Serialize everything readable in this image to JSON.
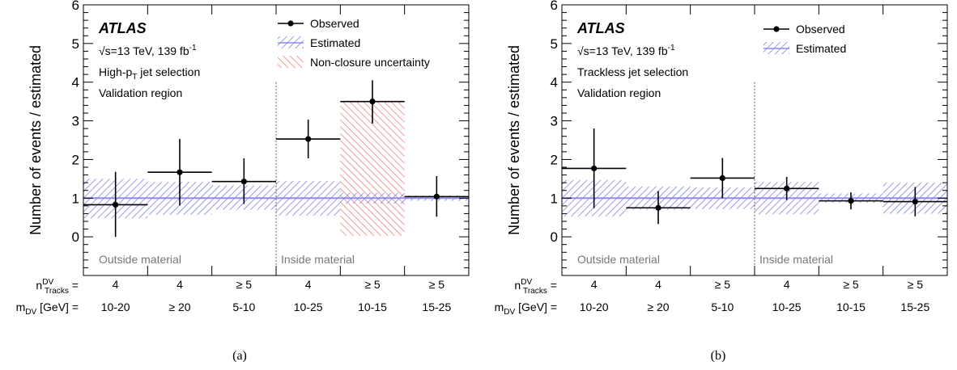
{
  "chart_data": [
    {
      "type": "bar",
      "caption": "(a)",
      "ylabel": "Number of events / estimated",
      "ylim": [
        -1,
        6
      ],
      "yticks": [
        "0",
        "1",
        "2",
        "3",
        "4",
        "5",
        "6"
      ],
      "atlas": "ATLAS",
      "info_lines": [
        "√s=13 TeV, 139 fb⁻¹",
        "High-p_T jet selection",
        "Validation region"
      ],
      "row_labels": {
        "ntracks": "n^DV_Tracks =",
        "mdv": "m_DV [GeV] ="
      },
      "region_labels": [
        "Outside material",
        "Inside material"
      ],
      "legend": [
        "Observed",
        "Estimated",
        "Non-closure uncertainty"
      ],
      "categories": [
        {
          "ntracks": "4",
          "mdv": "10-20"
        },
        {
          "ntracks": "4",
          "mdv": "≥ 20"
        },
        {
          "ntracks": "≥ 5",
          "mdv": "5-10"
        },
        {
          "ntracks": "4",
          "mdv": "10-25"
        },
        {
          "ntracks": "≥ 5",
          "mdv": "10-15"
        },
        {
          "ntracks": "≥ 5",
          "mdv": "15-25"
        }
      ],
      "series": [
        {
          "name": "Observed",
          "values": [
            0.83,
            1.67,
            1.43,
            2.53,
            3.5,
            1.04
          ],
          "err_low": [
            0.83,
            0.86,
            0.58,
            0.5,
            0.57,
            0.52
          ],
          "err_high": [
            0.85,
            0.86,
            0.6,
            0.5,
            0.55,
            0.53
          ]
        },
        {
          "name": "Estimated",
          "values": [
            1,
            1,
            1,
            1,
            1,
            1
          ],
          "band_low": [
            0.48,
            0.57,
            0.7,
            0.55,
            0.86,
            0.93
          ],
          "band_high": [
            1.5,
            1.42,
            1.33,
            1.45,
            1.14,
            1.07
          ]
        },
        {
          "name": "Non-closure uncertainty",
          "bins": [
            4
          ],
          "band_low": [
            0.03
          ],
          "band_high": [
            3.5
          ]
        }
      ],
      "colors": {
        "estimated": "#7070e0",
        "nonclosure": "#ee6666",
        "line": "#8c8cf2"
      }
    },
    {
      "type": "bar",
      "caption": "(b)",
      "ylabel": "Number of events / estimated",
      "ylim": [
        -1,
        6
      ],
      "yticks": [
        "0",
        "1",
        "2",
        "3",
        "4",
        "5",
        "6"
      ],
      "atlas": "ATLAS",
      "info_lines": [
        "√s=13 TeV, 139 fb⁻¹",
        "Trackless jet selection",
        "Validation region"
      ],
      "row_labels": {
        "ntracks": "n^DV_Tracks =",
        "mdv": "m_DV [GeV] ="
      },
      "region_labels": [
        "Outside material",
        "Inside material"
      ],
      "legend": [
        "Observed",
        "Estimated"
      ],
      "categories": [
        {
          "ntracks": "4",
          "mdv": "10-20"
        },
        {
          "ntracks": "4",
          "mdv": "≥ 20"
        },
        {
          "ntracks": "≥ 5",
          "mdv": "5-10"
        },
        {
          "ntracks": "4",
          "mdv": "10-25"
        },
        {
          "ntracks": "≥ 5",
          "mdv": "10-15"
        },
        {
          "ntracks": "≥ 5",
          "mdv": "15-25"
        }
      ],
      "series": [
        {
          "name": "Observed",
          "values": [
            1.77,
            0.75,
            1.52,
            1.25,
            0.93,
            0.91
          ],
          "err_low": [
            1.03,
            0.42,
            0.52,
            0.3,
            0.22,
            0.38
          ],
          "err_high": [
            1.03,
            0.43,
            0.52,
            0.3,
            0.22,
            0.38
          ]
        },
        {
          "name": "Estimated",
          "values": [
            1,
            1,
            1,
            1,
            1,
            1
          ],
          "band_low": [
            0.53,
            0.7,
            0.72,
            0.58,
            0.88,
            0.6
          ],
          "band_high": [
            1.47,
            1.3,
            1.28,
            1.42,
            1.12,
            1.4
          ]
        }
      ],
      "colors": {
        "estimated": "#7070e0",
        "line": "#8c8cf2"
      }
    }
  ]
}
